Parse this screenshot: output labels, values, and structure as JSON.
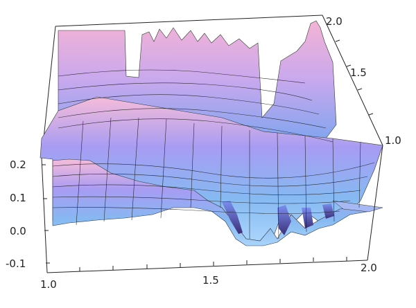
{
  "chart_data": {
    "type": "surface",
    "title": "",
    "x_axis": {
      "label": "",
      "range": [
        1.0,
        2.0
      ],
      "tick_labels": [
        "1.0",
        "1.5",
        "2.0"
      ]
    },
    "y_axis": {
      "label": "",
      "range": [
        1.0,
        2.0
      ],
      "tick_labels": [
        "1.0",
        "1.5",
        "2.0"
      ]
    },
    "z_axis": {
      "label": "",
      "range": [
        -0.1,
        0.2
      ],
      "tick_labels": [
        "-0.1",
        "0.0",
        "0.1",
        "0.2"
      ]
    },
    "grid": true,
    "colors": {
      "low": "#7fb6ee",
      "mid": "#9b93f0",
      "high": "#f2b6d8",
      "shadow": "#4b3f86",
      "mesh": "#111111",
      "box": "#222222"
    },
    "surface_profile_front": [
      {
        "x": 1.0,
        "z": 0.04
      },
      {
        "x": 1.1,
        "z": 0.12
      },
      {
        "x": 1.2,
        "z": 0.15
      },
      {
        "x": 1.3,
        "z": 0.11
      },
      {
        "x": 1.4,
        "z": 0.05
      },
      {
        "x": 1.5,
        "z": 0.01
      },
      {
        "x": 1.6,
        "z": -0.02
      },
      {
        "x": 1.7,
        "z": 0.03
      },
      {
        "x": 1.8,
        "z": 0.0
      },
      {
        "x": 1.9,
        "z": 0.04
      },
      {
        "x": 2.0,
        "z": 0.03
      }
    ]
  }
}
